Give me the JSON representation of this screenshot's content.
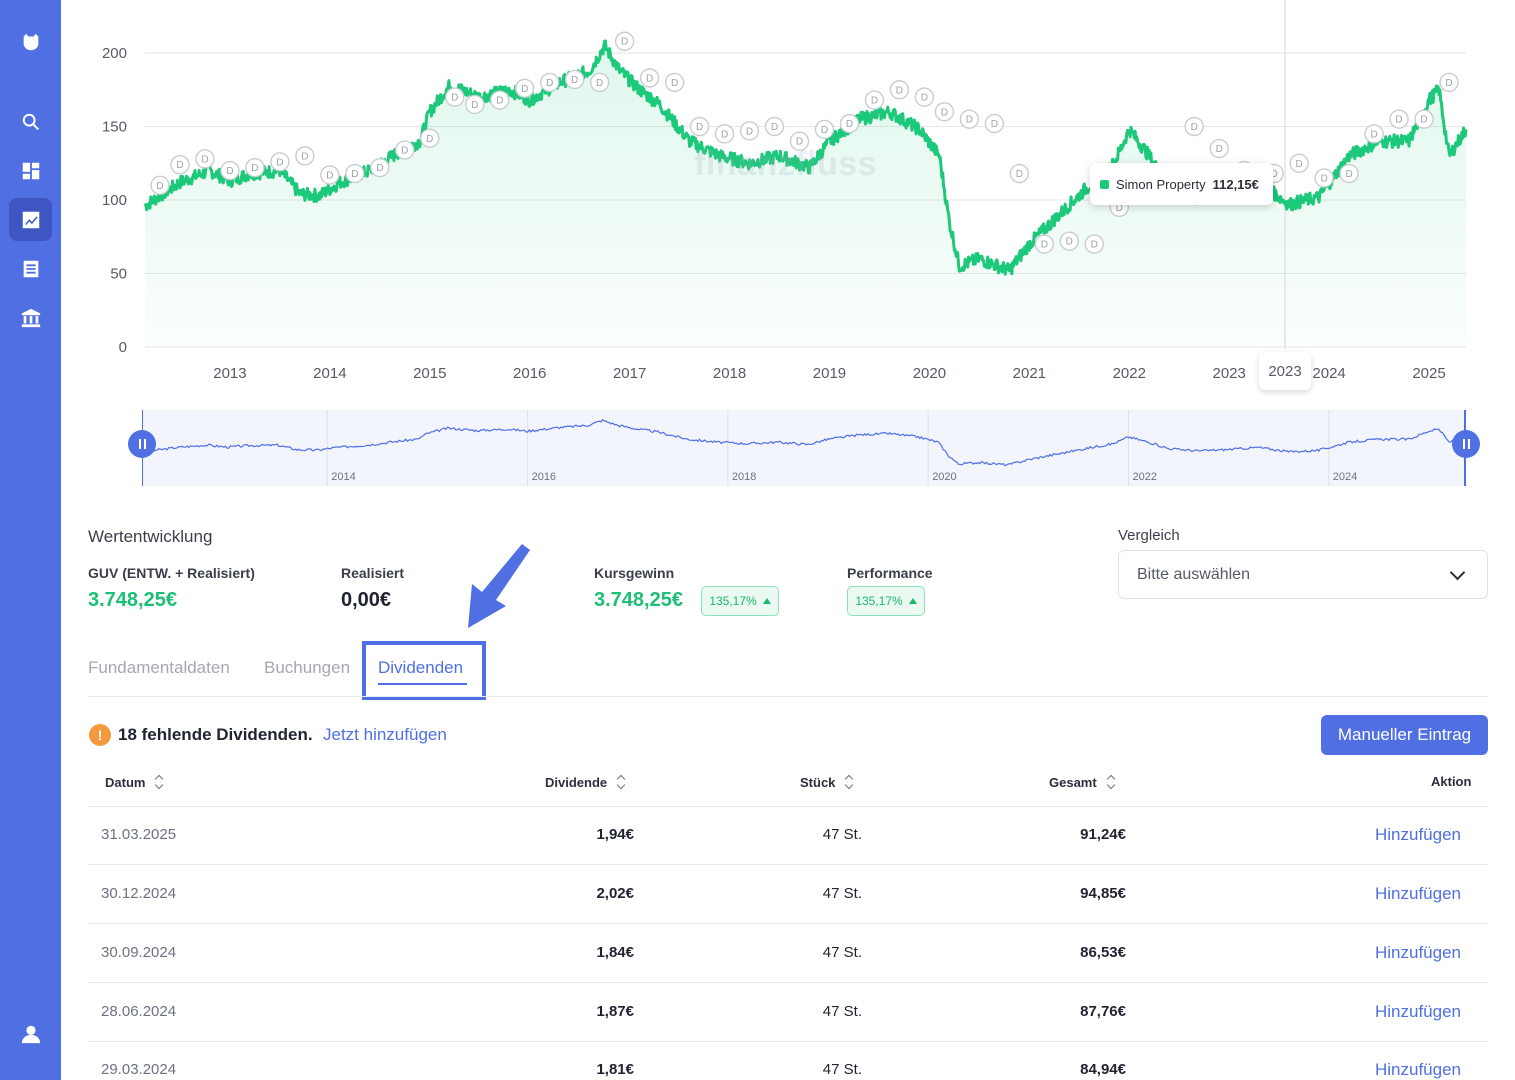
{
  "sidebar": {
    "icons": [
      "logo-icon",
      "search-icon",
      "dashboard-icon",
      "chart-icon",
      "list-icon",
      "bank-icon",
      "user-icon"
    ]
  },
  "chart": {
    "watermark": "finanzfluss",
    "tooltip": {
      "name": "Simon Property",
      "value": "112,15€"
    },
    "cursor_year": "2023",
    "line_color": "#1cc879",
    "marker_letter": "D"
  },
  "chart_data": {
    "type": "line",
    "x_ticks": [
      "2013",
      "2014",
      "2015",
      "2016",
      "2017",
      "2018",
      "2019",
      "2020",
      "2021",
      "2022",
      "2023",
      "2024",
      "2025"
    ],
    "y_ticks": [
      0,
      50,
      100,
      150,
      200
    ],
    "ylim": [
      0,
      210
    ],
    "series": [
      {
        "name": "Simon Property",
        "x": [
          2012.15,
          2012.5,
          2012.8,
          2013.0,
          2013.2,
          2013.5,
          2013.7,
          2013.9,
          2014.1,
          2014.4,
          2014.7,
          2014.9,
          2015.0,
          2015.2,
          2015.5,
          2015.8,
          2016.0,
          2016.3,
          2016.6,
          2016.75,
          2016.9,
          2017.1,
          2017.3,
          2017.6,
          2017.9,
          2018.2,
          2018.5,
          2018.8,
          2019.0,
          2019.3,
          2019.6,
          2019.9,
          2020.1,
          2020.2,
          2020.3,
          2020.5,
          2020.8,
          2021.0,
          2021.3,
          2021.6,
          2021.85,
          2022.0,
          2022.2,
          2022.4,
          2022.7,
          2023.0,
          2023.3,
          2023.6,
          2023.9,
          2024.2,
          2024.5,
          2024.8,
          2025.0,
          2025.1,
          2025.2,
          2025.37
        ],
        "values": [
          96,
          112,
          120,
          113,
          118,
          120,
          104,
          103,
          112,
          120,
          133,
          140,
          160,
          178,
          170,
          175,
          168,
          180,
          188,
          205,
          188,
          175,
          165,
          140,
          130,
          125,
          130,
          122,
          140,
          155,
          160,
          148,
          130,
          85,
          55,
          60,
          52,
          70,
          90,
          110,
          125,
          148,
          130,
          108,
          100,
          105,
          112,
          97,
          102,
          130,
          140,
          140,
          168,
          175,
          130,
          148
        ]
      }
    ],
    "navigator_ticks": [
      "2014",
      "2016",
      "2018",
      "2020",
      "2022",
      "2024"
    ],
    "markers_x": [
      2012.3,
      2012.5,
      2012.75,
      2013.0,
      2013.25,
      2013.5,
      2013.75,
      2014.0,
      2014.25,
      2014.5,
      2014.75,
      2015.0,
      2015.25,
      2015.45,
      2015.7,
      2015.95,
      2016.2,
      2016.45,
      2016.7,
      2016.95,
      2017.2,
      2017.45,
      2017.7,
      2017.95,
      2018.2,
      2018.45,
      2018.7,
      2018.95,
      2019.2,
      2019.45,
      2019.7,
      2019.95,
      2020.15,
      2020.4,
      2020.65,
      2020.9,
      2021.15,
      2021.4,
      2021.65,
      2021.9,
      2022.15,
      2022.4,
      2022.65,
      2022.9,
      2023.15,
      2023.45,
      2023.7,
      2023.95,
      2024.2,
      2024.45,
      2024.7,
      2024.95,
      2025.2
    ],
    "markers_y": [
      110,
      124,
      128,
      120,
      122,
      126,
      130,
      117,
      118,
      122,
      134,
      142,
      170,
      165,
      168,
      176,
      180,
      182,
      180,
      208,
      183,
      180,
      150,
      145,
      147,
      150,
      140,
      148,
      152,
      168,
      175,
      170,
      160,
      155,
      152,
      118,
      70,
      72,
      70,
      95,
      108,
      115,
      150,
      135,
      120,
      118,
      125,
      115,
      118,
      145,
      155,
      155,
      180
    ]
  },
  "stats": {
    "section_title": "Wertentwicklung",
    "guv": {
      "label": "GUV (ENTW. + Realisiert)",
      "value": "3.748,25€"
    },
    "realisiert": {
      "label": "Realisiert",
      "value": "0,00€"
    },
    "kursgewinn": {
      "label": "Kursgewinn",
      "value": "3.748,25€",
      "badge": "135,17%"
    },
    "performance": {
      "label": "Performance",
      "badge": "135,17%"
    }
  },
  "compare": {
    "label": "Vergleich",
    "placeholder": "Bitte auswählen"
  },
  "tabs": [
    {
      "label": "Fundamentaldaten"
    },
    {
      "label": "Buchungen"
    },
    {
      "label": "Dividenden"
    }
  ],
  "missing": {
    "text": "18 fehlende Dividenden.",
    "link": "Jetzt hinzufügen"
  },
  "manual_button": "Manueller Eintrag",
  "table": {
    "headers": {
      "date": "Datum",
      "dividend": "Dividende",
      "pieces": "Stück",
      "total": "Gesamt",
      "action": "Aktion"
    },
    "rows": [
      {
        "date": "31.03.2025",
        "dividend": "1,94€",
        "pieces": "47 St.",
        "total": "91,24€",
        "action": "Hinzufügen"
      },
      {
        "date": "30.12.2024",
        "dividend": "2,02€",
        "pieces": "47 St.",
        "total": "94,85€",
        "action": "Hinzufügen"
      },
      {
        "date": "30.09.2024",
        "dividend": "1,84€",
        "pieces": "47 St.",
        "total": "86,53€",
        "action": "Hinzufügen"
      },
      {
        "date": "28.06.2024",
        "dividend": "1,87€",
        "pieces": "47 St.",
        "total": "87,76€",
        "action": "Hinzufügen"
      },
      {
        "date": "29.03.2024",
        "dividend": "1,81€",
        "pieces": "47 St.",
        "total": "84,94€",
        "action": "Hinzufügen"
      }
    ]
  }
}
